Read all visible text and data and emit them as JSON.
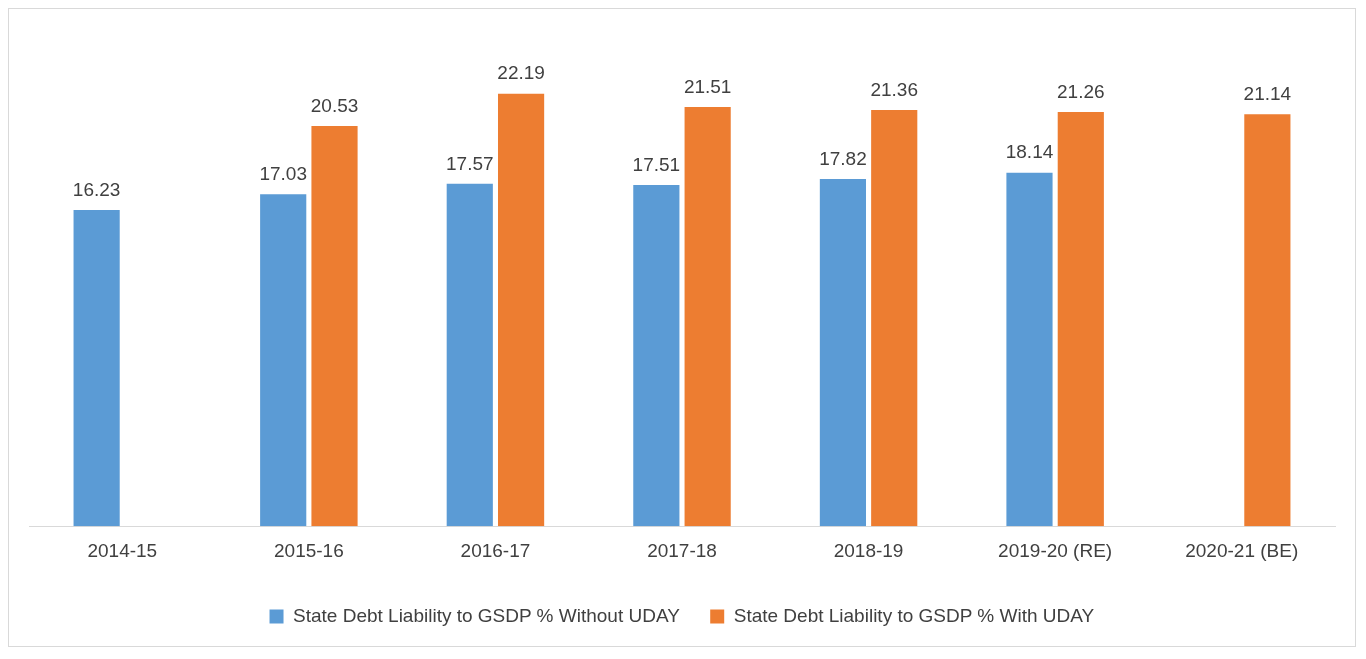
{
  "chart_data": {
    "type": "bar",
    "categories": [
      "2014-15",
      "2015-16",
      "2016-17",
      "2017-18",
      "2018-19",
      "2019-20 (RE)",
      "2020-21 (BE)"
    ],
    "series": [
      {
        "name": "State Debt Liability to GSDP % Without UDAY",
        "color": "#5b9bd5",
        "values": [
          16.23,
          17.03,
          17.57,
          17.51,
          17.82,
          18.14,
          null
        ]
      },
      {
        "name": "State Debt Liability to GSDP % With UDAY",
        "color": "#ed7d31",
        "values": [
          null,
          20.53,
          22.19,
          21.51,
          21.36,
          21.26,
          21.14
        ]
      }
    ],
    "data_labels": true,
    "grid": false,
    "legend": "bottom",
    "tick_labels": "x"
  }
}
